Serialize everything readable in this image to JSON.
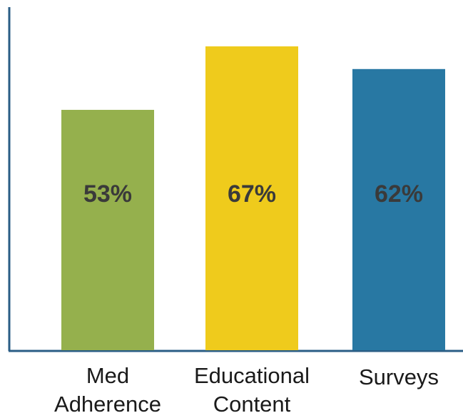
{
  "chart_data": {
    "type": "bar",
    "categories": [
      [
        "Med",
        "Adherence"
      ],
      [
        "Educational",
        "Content"
      ],
      [
        "Surveys"
      ]
    ],
    "values": [
      53,
      67,
      62
    ],
    "value_labels": [
      "53%",
      "67%",
      "62%"
    ],
    "colors": [
      "#95b04d",
      "#efcb1c",
      "#2878a3"
    ],
    "axis_color": "#2a5d85",
    "ylim": [
      0,
      85
    ],
    "grid": false,
    "legend": "none"
  }
}
